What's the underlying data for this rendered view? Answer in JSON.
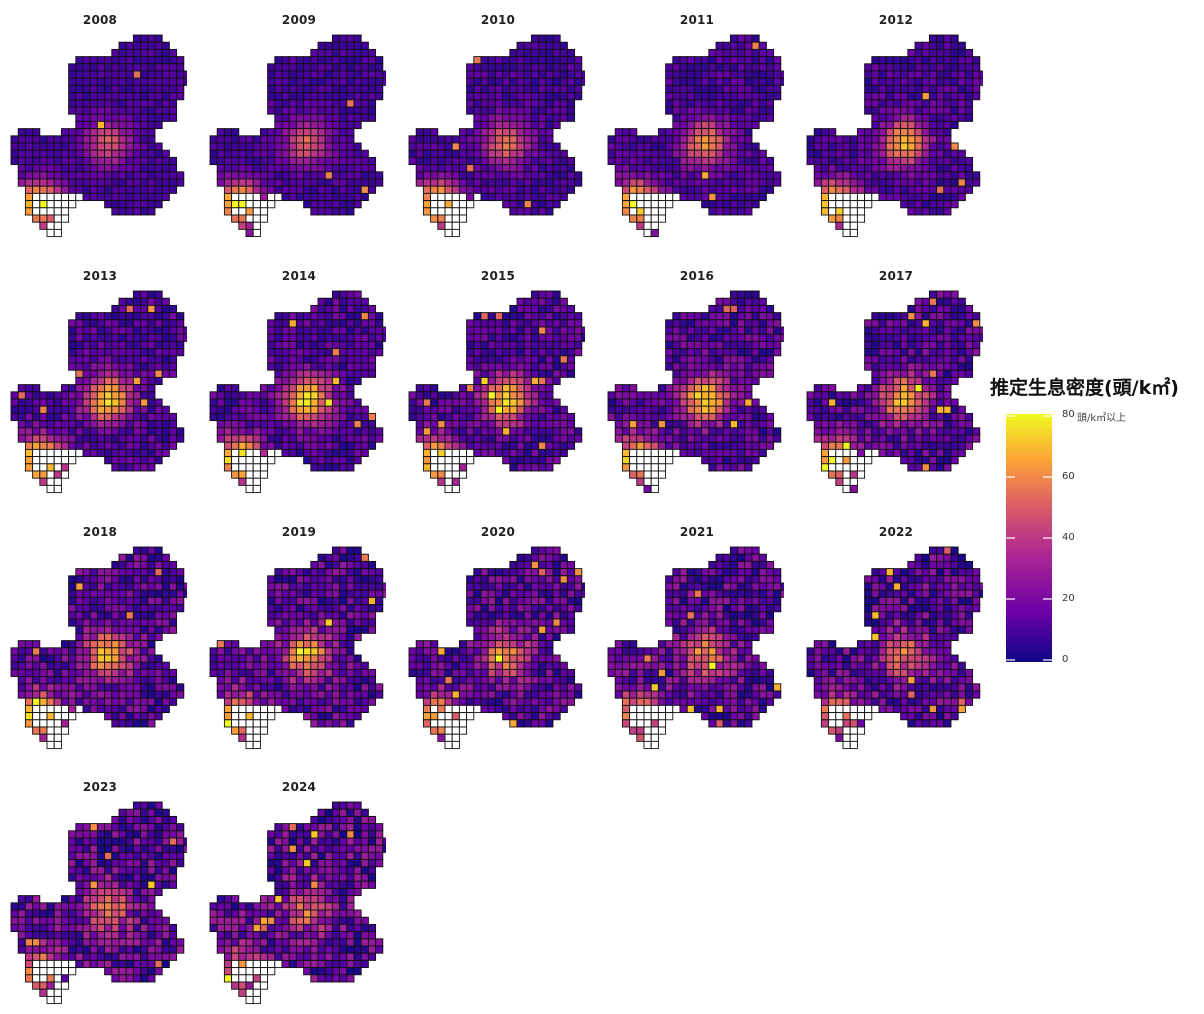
{
  "map_panels": [
    {
      "year": "2008",
      "hotspot": 0.55,
      "southwest": 1.0,
      "spread": 0.1,
      "seed": 11
    },
    {
      "year": "2009",
      "hotspot": 0.6,
      "southwest": 1.0,
      "spread": 0.12,
      "seed": 23
    },
    {
      "year": "2010",
      "hotspot": 0.65,
      "southwest": 1.0,
      "spread": 0.14,
      "seed": 37
    },
    {
      "year": "2011",
      "hotspot": 0.75,
      "southwest": 1.0,
      "spread": 0.16,
      "seed": 41
    },
    {
      "year": "2012",
      "hotspot": 0.85,
      "southwest": 1.0,
      "spread": 0.18,
      "seed": 53
    },
    {
      "year": "2013",
      "hotspot": 1.0,
      "southwest": 1.0,
      "spread": 0.2,
      "seed": 67
    },
    {
      "year": "2014",
      "hotspot": 1.0,
      "southwest": 1.0,
      "spread": 0.22,
      "seed": 71
    },
    {
      "year": "2015",
      "hotspot": 0.95,
      "southwest": 0.95,
      "spread": 0.24,
      "seed": 83
    },
    {
      "year": "2016",
      "hotspot": 0.95,
      "southwest": 0.95,
      "spread": 0.26,
      "seed": 97
    },
    {
      "year": "2017",
      "hotspot": 0.9,
      "southwest": 0.95,
      "spread": 0.28,
      "seed": 101
    },
    {
      "year": "2018",
      "hotspot": 0.85,
      "southwest": 0.95,
      "spread": 0.3,
      "seed": 113
    },
    {
      "year": "2019",
      "hotspot": 0.8,
      "southwest": 0.85,
      "spread": 0.32,
      "seed": 127
    },
    {
      "year": "2020",
      "hotspot": 0.7,
      "southwest": 0.75,
      "spread": 0.32,
      "seed": 131
    },
    {
      "year": "2021",
      "hotspot": 0.65,
      "southwest": 0.7,
      "spread": 0.34,
      "seed": 149
    },
    {
      "year": "2022",
      "hotspot": 0.6,
      "southwest": 0.65,
      "spread": 0.34,
      "seed": 157
    },
    {
      "year": "2023",
      "hotspot": 0.55,
      "southwest": 0.6,
      "spread": 0.36,
      "seed": 163
    },
    {
      "year": "2024",
      "hotspot": 0.55,
      "southwest": 0.55,
      "spread": 0.38,
      "seed": 179
    }
  ],
  "legend": {
    "title": "推定生息密度(頭/k㎡)",
    "unit_label": "頭/k㎡以上",
    "ticks": [
      "80",
      "60",
      "40",
      "20",
      "0"
    ],
    "min": 0,
    "max": 80,
    "colors": [
      "#0d0887",
      "#6a00a8",
      "#b12a90",
      "#e16462",
      "#fca636",
      "#f0f921"
    ],
    "no_data_color": "#ffffff",
    "cell_border_color": "#111111"
  }
}
